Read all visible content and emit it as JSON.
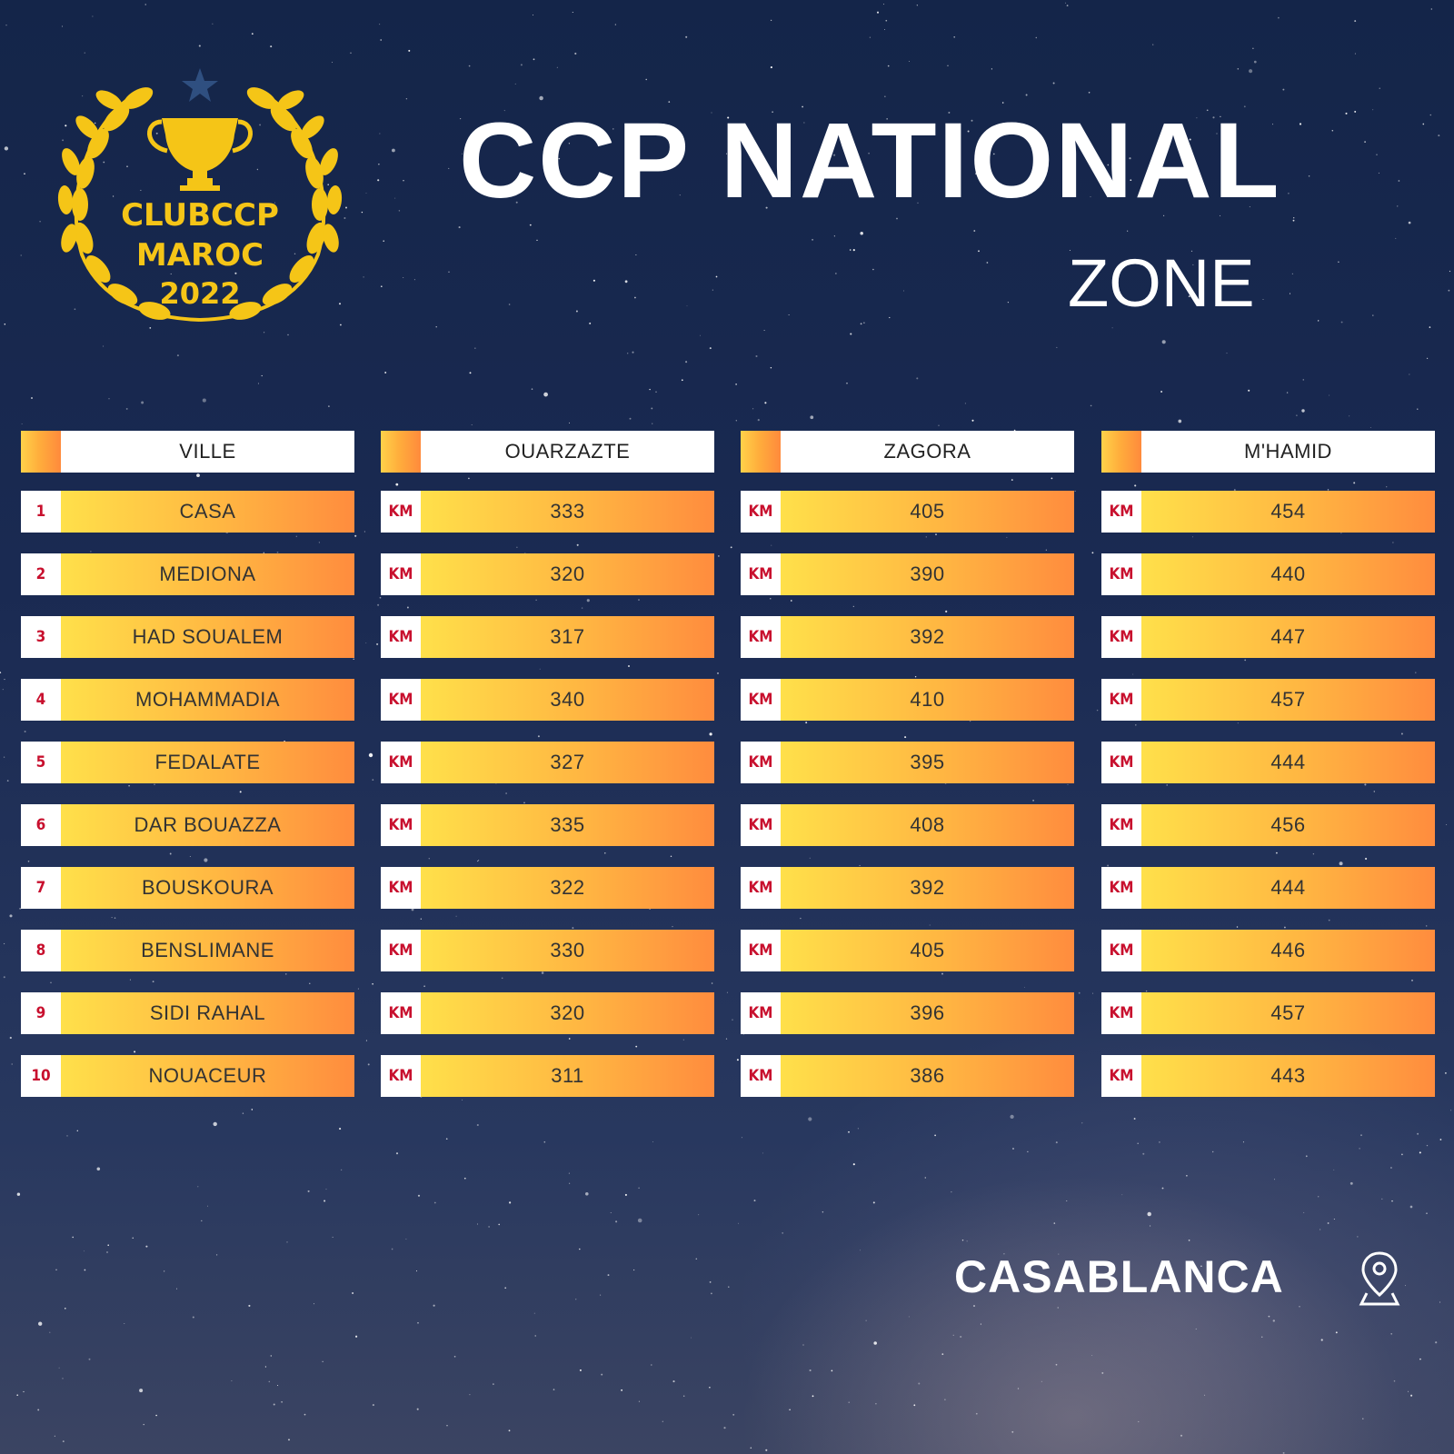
{
  "title": "CCP NATIONAL",
  "subtitle": "ZONE",
  "logo": {
    "line1": "CLUBCCP",
    "line2": "MAROC",
    "year": "2022",
    "color": "#f5c517"
  },
  "table": {
    "columns": [
      {
        "header": "VILLE",
        "tag": "rank",
        "values": [
          "CASA",
          "MEDIONA",
          "HAD SOUALEM",
          "MOHAMMADIA",
          "FEDALATE",
          "DAR BOUAZZA",
          "BOUSKOURA",
          "BENSLIMANE",
          "SIDI RAHAL",
          "NOUACEUR"
        ]
      },
      {
        "header": "OUARZAZTE",
        "tag": "unit",
        "values": [
          "333",
          "320",
          "317",
          "340",
          "327",
          "335",
          "322",
          "330",
          "320",
          "311"
        ]
      },
      {
        "header": "ZAGORA",
        "tag": "unit",
        "values": [
          "405",
          "390",
          "392",
          "410",
          "395",
          "408",
          "392",
          "405",
          "396",
          "386"
        ]
      },
      {
        "header": "M'HAMID",
        "tag": "unit",
        "values": [
          "454",
          "440",
          "447",
          "457",
          "444",
          "456",
          "444",
          "446",
          "457",
          "443"
        ]
      }
    ],
    "ranks": [
      "1",
      "2",
      "3",
      "4",
      "5",
      "6",
      "7",
      "8",
      "9",
      "10"
    ],
    "unit": "KM"
  },
  "location": {
    "label": "CASABLANCA",
    "icon": "map-pin-icon"
  },
  "colors": {
    "accent_red": "#c8102e",
    "gradient_start": "#ffe04a",
    "gradient_end": "#ff8c3e",
    "logo_gold": "#f5c517"
  }
}
